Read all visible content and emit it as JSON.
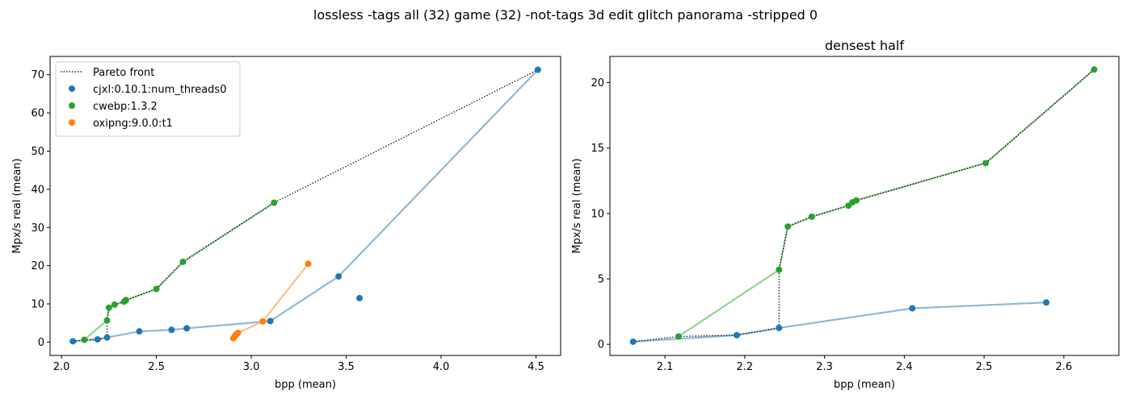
{
  "suptitle": "lossless -tags all (32) game (32) -not-tags 3d edit glitch panorama -stripped 0",
  "chart_data": [
    {
      "type": "scatter",
      "title": "",
      "xlabel": "bpp (mean)",
      "ylabel": "Mpx/s real (mean)",
      "xlim": [
        1.94,
        4.63
      ],
      "ylim": [
        -3.5,
        74.8
      ],
      "xticks": [
        "2.0",
        "2.5",
        "3.0",
        "3.5",
        "4.0",
        "4.5"
      ],
      "xtick_values": [
        2.0,
        2.5,
        3.0,
        3.5,
        4.0,
        4.5
      ],
      "yticks": [
        "0",
        "10",
        "20",
        "30",
        "40",
        "50",
        "60",
        "70"
      ],
      "ytick_values": [
        0,
        10,
        20,
        30,
        40,
        50,
        60,
        70
      ],
      "legend_position": "upper-left",
      "legend": [
        {
          "label": "Pareto front",
          "kind": "line"
        },
        {
          "label": "cjxl:0.10.1:num_threads0",
          "kind": "marker",
          "color": "#1f77b4"
        },
        {
          "label": "cwebp:1.3.2",
          "kind": "marker",
          "color": "#2ca02c"
        },
        {
          "label": "oxipng:9.0.0:t1",
          "kind": "marker",
          "color": "#ff7f0e"
        }
      ],
      "series": [
        {
          "name": "cjxl:0.10.1:num_threads0",
          "color": "#1f77b4",
          "line_color": "#8fb8d8",
          "line": [
            [
              2.06,
              0.2
            ],
            [
              2.19,
              0.7
            ],
            [
              2.24,
              1.2
            ],
            [
              2.41,
              2.8
            ],
            [
              2.58,
              3.2
            ],
            [
              2.66,
              3.6
            ],
            [
              3.1,
              5.5
            ],
            [
              3.46,
              17.2
            ],
            [
              4.51,
              71.3
            ]
          ],
          "points": [
            [
              2.06,
              0.2
            ],
            [
              2.19,
              0.7
            ],
            [
              2.24,
              1.2
            ],
            [
              2.41,
              2.8
            ],
            [
              2.58,
              3.2
            ],
            [
              2.66,
              3.6
            ],
            [
              3.1,
              5.5
            ],
            [
              3.46,
              17.2
            ],
            [
              3.57,
              11.5
            ],
            [
              4.51,
              71.3
            ]
          ]
        },
        {
          "name": "cwebp:1.3.2",
          "color": "#2ca02c",
          "line_color": "#96d196",
          "line": [
            [
              2.12,
              0.6
            ],
            [
              2.24,
              5.7
            ],
            [
              2.25,
              9.0
            ],
            [
              2.28,
              9.8
            ],
            [
              2.33,
              10.6
            ],
            [
              2.335,
              10.8
            ],
            [
              2.34,
              11.0
            ],
            [
              2.5,
              13.9
            ],
            [
              2.64,
              21.0
            ],
            [
              3.12,
              36.5
            ]
          ],
          "points": [
            [
              2.12,
              0.6
            ],
            [
              2.24,
              5.7
            ],
            [
              2.25,
              9.0
            ],
            [
              2.28,
              9.8
            ],
            [
              2.33,
              10.6
            ],
            [
              2.335,
              10.8
            ],
            [
              2.34,
              11.0
            ],
            [
              2.5,
              13.9
            ],
            [
              2.64,
              21.0
            ],
            [
              3.12,
              36.5
            ]
          ]
        },
        {
          "name": "oxipng:9.0.0:t1",
          "color": "#ff7f0e",
          "line_color": "#ffbf86",
          "line": [
            [
              2.905,
              1.0
            ],
            [
              2.91,
              1.3
            ],
            [
              2.915,
              1.6
            ],
            [
              2.92,
              2.0
            ],
            [
              2.93,
              2.4
            ],
            [
              3.06,
              5.4
            ],
            [
              3.3,
              20.5
            ]
          ],
          "points": [
            [
              2.905,
              1.0
            ],
            [
              2.91,
              1.3
            ],
            [
              2.915,
              1.6
            ],
            [
              2.92,
              2.0
            ],
            [
              2.93,
              2.4
            ],
            [
              3.06,
              5.4
            ],
            [
              3.3,
              20.5
            ]
          ]
        }
      ],
      "pareto": [
        [
          2.06,
          0.2
        ],
        [
          2.12,
          0.6
        ],
        [
          2.19,
          0.7
        ],
        [
          2.24,
          1.2
        ],
        [
          2.24,
          5.7
        ],
        [
          2.25,
          9.0
        ],
        [
          2.28,
          9.8
        ],
        [
          2.33,
          10.6
        ],
        [
          2.335,
          10.8
        ],
        [
          2.34,
          11.0
        ],
        [
          2.5,
          13.9
        ],
        [
          2.64,
          21.0
        ],
        [
          3.12,
          36.5
        ],
        [
          4.51,
          71.3
        ]
      ]
    },
    {
      "type": "scatter",
      "title": "densest half",
      "xlabel": "bpp (mean)",
      "ylabel": "Mpx/s real (mean)",
      "xlim": [
        2.031,
        2.669
      ],
      "ylim": [
        -0.85,
        22.0
      ],
      "xticks": [
        "2.1",
        "2.2",
        "2.3",
        "2.4",
        "2.5",
        "2.6"
      ],
      "xtick_values": [
        2.1,
        2.2,
        2.3,
        2.4,
        2.5,
        2.6
      ],
      "yticks": [
        "0",
        "5",
        "10",
        "15",
        "20"
      ],
      "ytick_values": [
        0,
        5,
        10,
        15,
        20
      ],
      "series": [
        {
          "name": "cjxl:0.10.1:num_threads0",
          "color": "#1f77b4",
          "line_color": "#8fb8d8",
          "line": [
            [
              2.06,
              0.2
            ],
            [
              2.19,
              0.7
            ],
            [
              2.243,
              1.25
            ],
            [
              2.41,
              2.75
            ],
            [
              2.578,
              3.2
            ]
          ],
          "points": [
            [
              2.06,
              0.2
            ],
            [
              2.19,
              0.7
            ],
            [
              2.243,
              1.25
            ],
            [
              2.41,
              2.75
            ],
            [
              2.578,
              3.2
            ]
          ]
        },
        {
          "name": "cwebp:1.3.2",
          "color": "#2ca02c",
          "line_color": "#96d196",
          "line": [
            [
              2.117,
              0.6
            ],
            [
              2.243,
              5.7
            ],
            [
              2.254,
              9.0
            ],
            [
              2.284,
              9.75
            ],
            [
              2.33,
              10.6
            ],
            [
              2.335,
              10.85
            ],
            [
              2.34,
              11.0
            ],
            [
              2.502,
              13.85
            ],
            [
              2.638,
              21.0
            ]
          ],
          "points": [
            [
              2.117,
              0.6
            ],
            [
              2.243,
              5.7
            ],
            [
              2.254,
              9.0
            ],
            [
              2.284,
              9.75
            ],
            [
              2.33,
              10.6
            ],
            [
              2.335,
              10.85
            ],
            [
              2.34,
              11.0
            ],
            [
              2.502,
              13.85
            ],
            [
              2.638,
              21.0
            ]
          ]
        }
      ],
      "pareto": [
        [
          2.06,
          0.2
        ],
        [
          2.117,
          0.6
        ],
        [
          2.19,
          0.7
        ],
        [
          2.243,
          1.25
        ],
        [
          2.243,
          5.7
        ],
        [
          2.254,
          9.0
        ],
        [
          2.284,
          9.75
        ],
        [
          2.33,
          10.6
        ],
        [
          2.335,
          10.85
        ],
        [
          2.34,
          11.0
        ],
        [
          2.502,
          13.85
        ],
        [
          2.638,
          21.0
        ]
      ]
    }
  ]
}
